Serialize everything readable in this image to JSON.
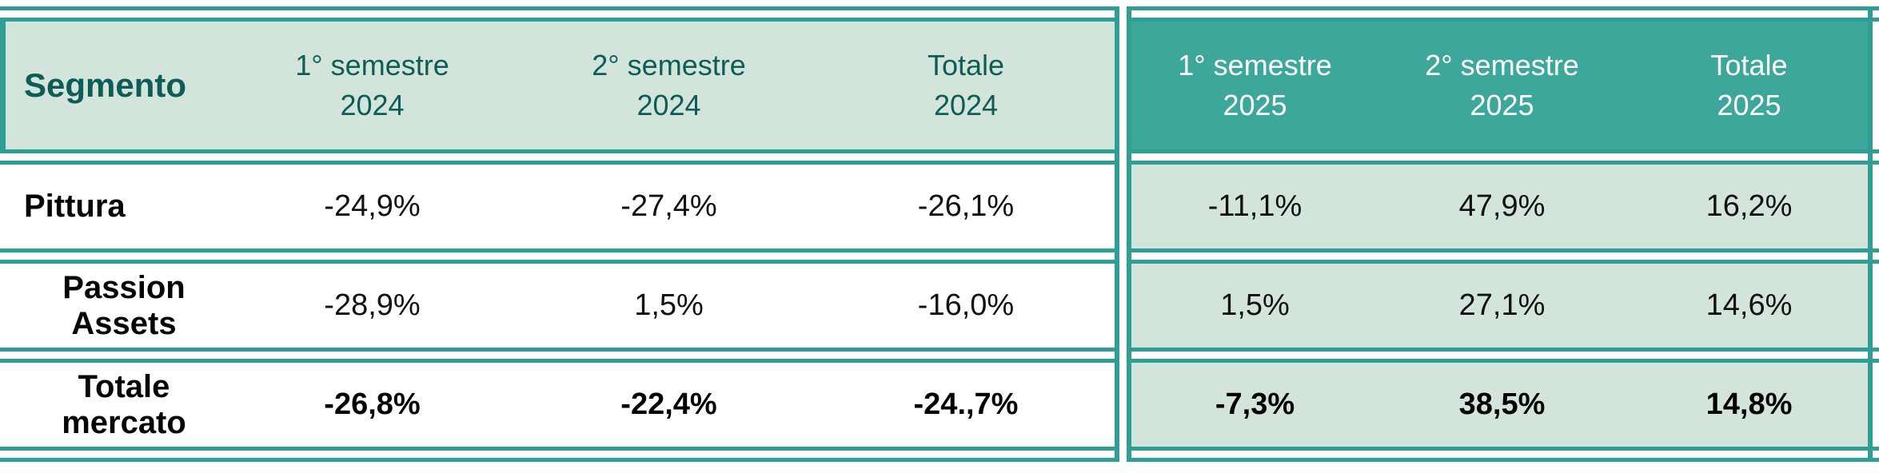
{
  "chart_data": {
    "type": "table",
    "columns": [
      "Segmento",
      "1° semestre 2024",
      "2° semestre 2024",
      "Totale 2024",
      "1° semestre 2025",
      "2° semestre 2025",
      "Totale 2025"
    ],
    "rows": [
      [
        "Pittura",
        "-24,9%",
        "-27,4%",
        "-26,1%",
        "-11,1%",
        "47,9%",
        "16,2%"
      ],
      [
        "Passion Assets",
        "-28,9%",
        "1,5%",
        "-16,0%",
        "1,5%",
        "27,1%",
        "14,6%"
      ],
      [
        "Totale mercato",
        "-26,8%",
        "-22,4%",
        "-24.,7%",
        "-7,3%",
        "38,5%",
        "14,8%"
      ]
    ],
    "layout_hints": "Left half (2024 columns) has light-green header and white body cells; right half (2025 columns) has teal header with white text and light-green body cells; sections separated by a double teal vertical rule; all horizontal rules are double teal lines; last row is bold totals."
  },
  "table": {
    "header": {
      "segment_label": "Segmento",
      "h2024": [
        {
          "line1": "1° semestre",
          "line2": "2024"
        },
        {
          "line1": "2° semestre",
          "line2": "2024"
        },
        {
          "line1": "Totale",
          "line2": "2024"
        }
      ],
      "h2025": [
        {
          "line1": "1° semestre",
          "line2": "2025"
        },
        {
          "line1": "2° semestre",
          "line2": "2025"
        },
        {
          "line1": "Totale",
          "line2": "2025"
        }
      ]
    },
    "rows": [
      {
        "label": "Pittura",
        "v2024": [
          "-24,9%",
          "-27,4%",
          "-26,1%"
        ],
        "v2025": [
          "-11,1%",
          "47,9%",
          "16,2%"
        ]
      },
      {
        "label": "Passion Assets",
        "v2024": [
          "-28,9%",
          "1,5%",
          "-16,0%"
        ],
        "v2025": [
          "1,5%",
          "27,1%",
          "14,6%"
        ]
      },
      {
        "label": "Totale mercato",
        "v2024": [
          "-26,8%",
          "-22,4%",
          "-24.,7%"
        ],
        "v2025": [
          "-7,3%",
          "38,5%",
          "14,8%"
        ]
      }
    ],
    "colors": {
      "teal_header_bg": "#3ea79b",
      "light_green_bg": "#d3e5da",
      "border_teal": "#2f9e94",
      "dark_teal_text": "#0d5c58",
      "header_2025_text": "#ffffff",
      "body_text": "#111111"
    }
  }
}
